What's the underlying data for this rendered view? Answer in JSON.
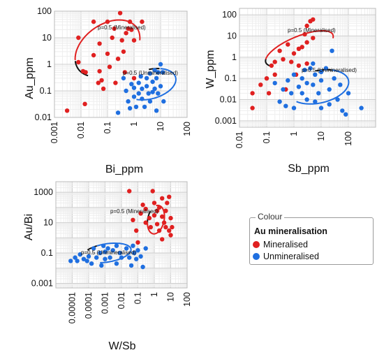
{
  "legend": {
    "title": "Colour",
    "subtitle": "Au mineralisation",
    "items": [
      {
        "label": "Mineralised",
        "color": "#e02020"
      },
      {
        "label": "Unmineralised",
        "color": "#1f6fe0"
      }
    ]
  },
  "chart_data": [
    {
      "type": "scatter",
      "xlabel": "Bi_ppm",
      "ylabel": "Au_ppm",
      "x_scale": "log",
      "y_scale": "log",
      "xlim": [
        0.001,
        100
      ],
      "ylim": [
        0.01,
        100
      ],
      "x_ticks": [
        "0.001",
        "0.01",
        "0.1",
        "1",
        "10",
        "100"
      ],
      "y_ticks": [
        "100",
        "10",
        "1",
        "0.1",
        "0.01"
      ],
      "grid": true,
      "annotations": [
        "p=0.5 (Mineralised)",
        "p=0.5 (Unmineralised)"
      ],
      "series": [
        {
          "name": "Mineralised",
          "color": "#e02020",
          "points": [
            [
              0.003,
              0.018
            ],
            [
              0.008,
              10
            ],
            [
              0.008,
              1.2
            ],
            [
              0.012,
              0.55
            ],
            [
              0.015,
              0.5
            ],
            [
              0.014,
              0.032
            ],
            [
              0.03,
              40
            ],
            [
              0.03,
              2.2
            ],
            [
              0.045,
              0.2
            ],
            [
              0.05,
              0.55
            ],
            [
              0.05,
              6
            ],
            [
              0.06,
              0.25
            ],
            [
              0.07,
              0.12
            ],
            [
              0.1,
              2.5
            ],
            [
              0.1,
              40
            ],
            [
              0.12,
              0.8
            ],
            [
              0.15,
              10
            ],
            [
              0.18,
              22
            ],
            [
              0.2,
              0.2
            ],
            [
              0.25,
              1.6
            ],
            [
              0.3,
              85
            ],
            [
              0.35,
              8
            ],
            [
              0.4,
              3
            ],
            [
              0.45,
              0.5
            ],
            [
              0.5,
              15
            ],
            [
              0.6,
              22
            ],
            [
              0.7,
              40
            ],
            [
              0.8,
              20
            ],
            [
              1.0,
              8
            ],
            [
              1.0,
              0.3
            ],
            [
              2.0,
              40
            ]
          ]
        },
        {
          "name": "Unmineralised",
          "color": "#1f6fe0",
          "points": [
            [
              0.25,
              0.015
            ],
            [
              0.4,
              0.3
            ],
            [
              0.5,
              0.1
            ],
            [
              0.6,
              0.04
            ],
            [
              0.7,
              0.022
            ],
            [
              0.8,
              0.18
            ],
            [
              1.0,
              0.06
            ],
            [
              1.0,
              0.13
            ],
            [
              1.2,
              0.025
            ],
            [
              1.5,
              0.08
            ],
            [
              1.5,
              0.2
            ],
            [
              1.8,
              0.35
            ],
            [
              2.0,
              0.12
            ],
            [
              2.0,
              0.05
            ],
            [
              2.5,
              0.025
            ],
            [
              3,
              0.3
            ],
            [
              3,
              0.15
            ],
            [
              3.5,
              0.08
            ],
            [
              4,
              0.45
            ],
            [
              4,
              0.04
            ],
            [
              5,
              0.22
            ],
            [
              5,
              0.09
            ],
            [
              6,
              0.6
            ],
            [
              6,
              0.12
            ],
            [
              7,
              0.3
            ],
            [
              7,
              0.018
            ],
            [
              8,
              0.5
            ],
            [
              8,
              0.08
            ],
            [
              10,
              0.15
            ],
            [
              10,
              1.0
            ],
            [
              12,
              0.5
            ],
            [
              13,
              0.04
            ]
          ]
        }
      ]
    },
    {
      "type": "scatter",
      "xlabel": "Sb_ppm",
      "ylabel": "W_ppm",
      "x_scale": "log",
      "y_scale": "log",
      "xlim": [
        0.01,
        1000
      ],
      "ylim": [
        0.0005,
        200
      ],
      "x_ticks": [
        "0.01",
        "0.1",
        "1",
        "10",
        "100"
      ],
      "y_ticks": [
        "100",
        "10",
        "1",
        "0.1",
        "0.01",
        "0.001"
      ],
      "grid": true,
      "annotations": [
        "p=0.5 (Mineralised)",
        "p=0.5 (Unmineralised)"
      ],
      "series": [
        {
          "name": "Mineralised",
          "color": "#e02020",
          "points": [
            [
              0.03,
              0.004
            ],
            [
              0.03,
              0.02
            ],
            [
              0.06,
              0.05
            ],
            [
              0.1,
              0.1
            ],
            [
              0.12,
              0.02
            ],
            [
              0.15,
              0.4
            ],
            [
              0.2,
              0.6
            ],
            [
              0.2,
              0.15
            ],
            [
              0.3,
              2
            ],
            [
              0.4,
              0.8
            ],
            [
              0.5,
              0.03
            ],
            [
              0.6,
              4
            ],
            [
              0.8,
              0.6
            ],
            [
              1.0,
              1.5
            ],
            [
              1.2,
              0.15
            ],
            [
              1.5,
              2.5
            ],
            [
              2,
              3
            ],
            [
              2.5,
              12
            ],
            [
              3,
              30
            ],
            [
              3,
              5
            ],
            [
              4,
              50
            ],
            [
              5,
              60
            ],
            [
              5,
              8
            ],
            [
              3,
              0.5
            ],
            [
              1.5,
              0.4
            ]
          ]
        },
        {
          "name": "Unmineralised",
          "color": "#1f6fe0",
          "points": [
            [
              0.2,
              0.06
            ],
            [
              0.3,
              0.008
            ],
            [
              0.4,
              0.03
            ],
            [
              0.5,
              0.005
            ],
            [
              0.6,
              0.08
            ],
            [
              0.8,
              0.02
            ],
            [
              1.0,
              0.15
            ],
            [
              1.0,
              0.004
            ],
            [
              1.5,
              0.04
            ],
            [
              2,
              0.1
            ],
            [
              2,
              0.02
            ],
            [
              3,
              0.06
            ],
            [
              3,
              0.01
            ],
            [
              4,
              0.3
            ],
            [
              5,
              0.05
            ],
            [
              6,
              0.15
            ],
            [
              6,
              0.008
            ],
            [
              8,
              0.02
            ],
            [
              10,
              0.08
            ],
            [
              10,
              0.004
            ],
            [
              15,
              0.3
            ],
            [
              20,
              0.03
            ],
            [
              20,
              0.006
            ],
            [
              25,
              2
            ],
            [
              30,
              0.1
            ],
            [
              40,
              0.01
            ],
            [
              50,
              0.05
            ],
            [
              60,
              0.003
            ],
            [
              80,
              0.002
            ],
            [
              100,
              0.02
            ],
            [
              300,
              0.004
            ],
            [
              5,
              0.5
            ],
            [
              10,
              0.2
            ],
            [
              2.5,
              0.25
            ]
          ]
        }
      ]
    },
    {
      "type": "scatter",
      "xlabel": "W/Sb",
      "ylabel": "Au/Bi",
      "x_scale": "log",
      "y_scale": "log",
      "xlim": [
        1e-06,
        100
      ],
      "ylim": [
        0.0005,
        5000
      ],
      "x_ticks": [
        "0.00001",
        "0.0001",
        "0.001",
        "0.01",
        "0.1",
        "1",
        "10",
        "100"
      ],
      "y_ticks": [
        "1000",
        "10",
        "0.1",
        "0.001"
      ],
      "grid": true,
      "annotations": [
        "p=0.5 (Mineralised)",
        "p=0.5 (Unmineralised)"
      ],
      "series": [
        {
          "name": "Mineralised",
          "color": "#e02020",
          "points": [
            [
              0.03,
              1200
            ],
            [
              0.05,
              15
            ],
            [
              0.08,
              3
            ],
            [
              0.1,
              0.5
            ],
            [
              0.15,
              40
            ],
            [
              0.2,
              150
            ],
            [
              0.3,
              80
            ],
            [
              0.3,
              10
            ],
            [
              0.5,
              20
            ],
            [
              0.6,
              5
            ],
            [
              0.8,
              1200
            ],
            [
              1,
              200
            ],
            [
              1,
              30
            ],
            [
              1.5,
              60
            ],
            [
              1.5,
              8
            ],
            [
              2,
              3
            ],
            [
              2,
              100
            ],
            [
              3,
              25
            ],
            [
              3,
              0.8
            ],
            [
              4,
              10
            ],
            [
              5,
              60
            ],
            [
              5,
              5
            ],
            [
              6,
              200
            ],
            [
              8,
              500
            ],
            [
              8,
              3
            ],
            [
              10,
              20
            ],
            [
              10,
              1.5
            ],
            [
              12,
              5
            ],
            [
              3,
              400
            ]
          ]
        },
        {
          "name": "Unmineralised",
          "color": "#1f6fe0",
          "points": [
            [
              8e-06,
              0.03
            ],
            [
              1.5e-05,
              0.05
            ],
            [
              2e-05,
              0.03
            ],
            [
              3e-05,
              0.08
            ],
            [
              5e-05,
              0.04
            ],
            [
              8e-05,
              0.03
            ],
            [
              0.0001,
              0.06
            ],
            [
              0.00015,
              0.02
            ],
            [
              0.0002,
              0.2
            ],
            [
              0.0003,
              0.05
            ],
            [
              0.0005,
              0.1
            ],
            [
              0.0006,
              0.015
            ],
            [
              0.0008,
              0.3
            ],
            [
              0.001,
              0.04
            ],
            [
              0.001,
              0.12
            ],
            [
              0.0015,
              0.2
            ],
            [
              0.002,
              0.05
            ],
            [
              0.003,
              0.15
            ],
            [
              0.005,
              0.3
            ],
            [
              0.005,
              0.02
            ],
            [
              0.008,
              0.1
            ],
            [
              0.01,
              0.05
            ],
            [
              0.02,
              0.2
            ],
            [
              0.03,
              0.05
            ],
            [
              0.04,
              0.015
            ],
            [
              0.05,
              0.3
            ],
            [
              0.06,
              0.1
            ],
            [
              0.08,
              0.04
            ],
            [
              0.1,
              0.15
            ],
            [
              0.15,
              0.06
            ],
            [
              0.2,
              0.012
            ],
            [
              0.3,
              0.2
            ]
          ]
        }
      ]
    }
  ]
}
